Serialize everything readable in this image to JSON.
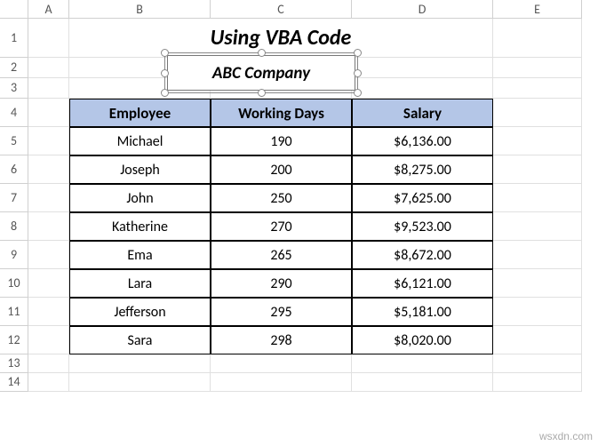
{
  "columns": [
    "A",
    "B",
    "C",
    "D",
    "E"
  ],
  "row_count": 14,
  "title": "Using VBA Code",
  "textbox_text": "ABC Company",
  "table": {
    "header_bg": "#b4c6e7",
    "border_color": "#000000",
    "headers": [
      "Employee",
      "Working Days",
      "Salary"
    ],
    "rows": [
      {
        "employee": "Michael",
        "days": "190",
        "salary": "$6,136.00"
      },
      {
        "employee": "Joseph",
        "days": "200",
        "salary": "$8,275.00"
      },
      {
        "employee": "John",
        "days": "250",
        "salary": "$7,625.00"
      },
      {
        "employee": "Katherine",
        "days": "270",
        "salary": "$9,523.00"
      },
      {
        "employee": "Ema",
        "days": "265",
        "salary": "$8,672.00"
      },
      {
        "employee": "Lara",
        "days": "290",
        "salary": "$6,121.00"
      },
      {
        "employee": "Jefferson",
        "days": "295",
        "salary": "$5,181.00"
      },
      {
        "employee": "Sara",
        "days": "298",
        "salary": "$8,020.00"
      }
    ]
  },
  "watermark": "wsxdn.com"
}
